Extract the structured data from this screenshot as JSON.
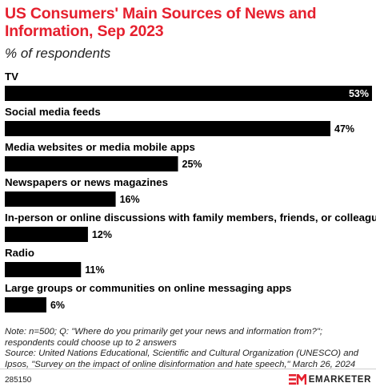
{
  "header": {
    "title": "US Consumers' Main Sources of News and Information, Sep 2023",
    "subtitle": "% of respondents"
  },
  "chart_data": {
    "type": "bar",
    "orientation": "horizontal",
    "categories": [
      "TV",
      "Social media feeds",
      "Media websites or media mobile apps",
      "Newspapers or news magazines",
      "In-person or online discussions with family members, friends, or colleagues",
      "Radio",
      "Large groups or communities on online messaging apps"
    ],
    "values": [
      53,
      47,
      25,
      16,
      12,
      11,
      6
    ],
    "value_labels": [
      "53%",
      "47%",
      "25%",
      "16%",
      "12%",
      "11%",
      "6%"
    ],
    "bar_color": "#000000",
    "xlim": [
      0,
      53
    ],
    "grid": false,
    "legend": "none"
  },
  "footer": {
    "note": "Note: n=500; Q: \"Where do you primarily get your news and information from?\"; respondents could choose up to 2 answers",
    "source": "Source: United Nations Educational, Scientific and Cultural Organization (UNESCO) and Ipsos, \"Survey on the impact of online disinformation and hate speech,\" March 26, 2024",
    "chart_id": "285150",
    "brand": "EMARKETER",
    "brand_color": "#e5202e"
  }
}
